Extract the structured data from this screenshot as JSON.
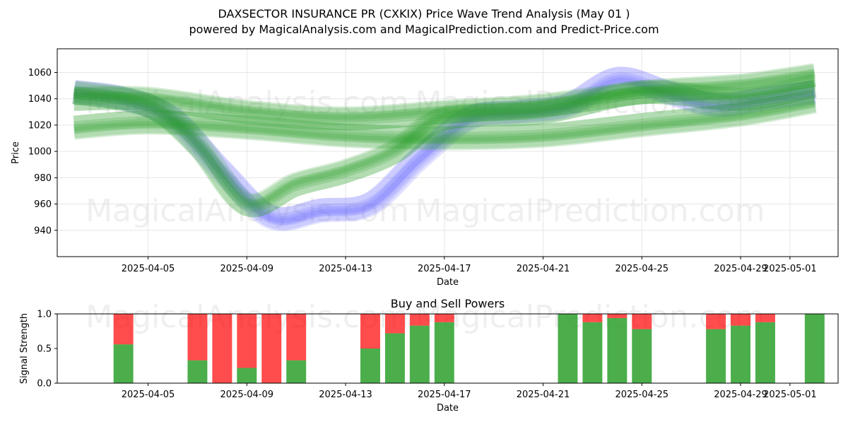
{
  "title_line1": "DAXSECTOR INSURANCE PR (CXKIX) Price Wave Trend Analysis (May 01 )",
  "title_line2": "powered by MagicalAnalysis.com and MagicalPrediction.com and Predict-Price.com",
  "watermarks": [
    "MagicalAnalysis.com",
    "MagicalPrediction.com"
  ],
  "colors": {
    "buy": "#2ca02c",
    "sell": "#ff0000",
    "wave_green": "#2ca02c",
    "wave_blue": "#6666ff"
  },
  "chart_data": [
    {
      "type": "area",
      "xlabel": "Date",
      "ylabel": "Price",
      "ylim": [
        920,
        1078
      ],
      "xlim": [
        "2025-04-01",
        "2025-05-03"
      ],
      "grid": true,
      "x_ticks": [
        "2025-04-05",
        "2025-04-09",
        "2025-04-13",
        "2025-04-17",
        "2025-04-21",
        "2025-04-25",
        "2025-04-29",
        "2025-05-01"
      ],
      "y_ticks": [
        940,
        960,
        980,
        1000,
        1020,
        1040,
        1060
      ],
      "series": [
        {
          "color": "blue",
          "x": [
            "2025-04-02",
            "2025-04-04",
            "2025-04-06",
            "2025-04-08",
            "2025-04-10",
            "2025-04-12",
            "2025-04-14",
            "2025-04-16",
            "2025-04-18",
            "2025-04-20",
            "2025-04-22",
            "2025-04-24",
            "2025-04-26",
            "2025-04-28",
            "2025-04-30",
            "2025-05-02"
          ],
          "values": [
            1045,
            1040,
            1025,
            985,
            950,
            955,
            960,
            995,
            1025,
            1030,
            1035,
            1055,
            1045,
            1035,
            1040,
            1045
          ]
        },
        {
          "color": "green",
          "x": [
            "2025-04-02",
            "2025-04-05",
            "2025-04-09",
            "2025-04-13",
            "2025-04-17",
            "2025-04-21",
            "2025-04-25",
            "2025-04-29",
            "2025-05-02"
          ],
          "values": [
            1040,
            1040,
            1030,
            1025,
            1030,
            1035,
            1045,
            1050,
            1058
          ]
        },
        {
          "color": "green",
          "x": [
            "2025-04-02",
            "2025-04-05",
            "2025-04-09",
            "2025-04-13",
            "2025-04-17",
            "2025-04-21",
            "2025-04-25",
            "2025-04-29",
            "2025-05-02"
          ],
          "values": [
            1018,
            1022,
            1018,
            1012,
            1010,
            1012,
            1020,
            1028,
            1038
          ]
        },
        {
          "color": "green",
          "x": [
            "2025-04-02",
            "2025-04-05",
            "2025-04-07",
            "2025-04-09",
            "2025-04-11",
            "2025-04-13",
            "2025-04-15",
            "2025-04-17",
            "2025-04-21",
            "2025-04-25",
            "2025-04-29",
            "2025-05-02"
          ],
          "values": [
            1045,
            1035,
            1005,
            960,
            975,
            985,
            1000,
            1025,
            1030,
            1045,
            1040,
            1050
          ]
        }
      ]
    },
    {
      "type": "bar",
      "title": "Buy and Sell Powers",
      "xlabel": "Date",
      "ylabel": "Signal Strength",
      "ylim": [
        0,
        1
      ],
      "y_ticks": [
        "0.0",
        "0.5",
        "1.0"
      ],
      "x_ticks": [
        "2025-04-05",
        "2025-04-09",
        "2025-04-13",
        "2025-04-17",
        "2025-04-21",
        "2025-04-25",
        "2025-04-29",
        "2025-05-01"
      ],
      "categories": [
        "2025-04-04",
        "2025-04-07",
        "2025-04-08",
        "2025-04-09",
        "2025-04-10",
        "2025-04-11",
        "2025-04-14",
        "2025-04-15",
        "2025-04-16",
        "2025-04-17",
        "2025-04-22",
        "2025-04-23",
        "2025-04-24",
        "2025-04-25",
        "2025-04-28",
        "2025-04-29",
        "2025-04-30",
        "2025-05-02"
      ],
      "series": [
        {
          "name": "buy",
          "values": [
            0.56,
            0.33,
            0.0,
            0.22,
            0.0,
            0.33,
            0.5,
            0.72,
            0.83,
            0.88,
            1.0,
            0.88,
            0.94,
            0.78,
            0.78,
            0.83,
            0.88,
            1.0
          ]
        },
        {
          "name": "sell",
          "values": [
            0.44,
            0.67,
            1.0,
            0.78,
            1.0,
            0.67,
            0.5,
            0.28,
            0.17,
            0.12,
            0.0,
            0.12,
            0.06,
            0.22,
            0.22,
            0.17,
            0.12,
            0.0
          ]
        }
      ]
    }
  ]
}
